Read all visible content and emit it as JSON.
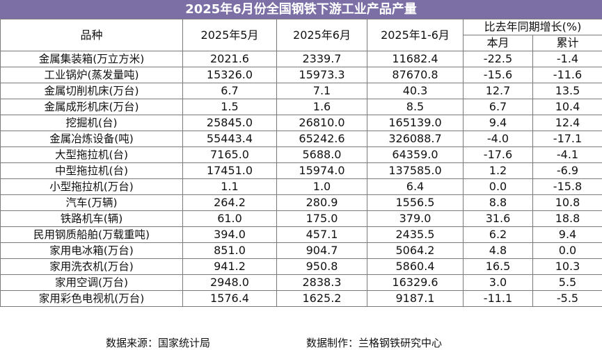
{
  "title": "2025年6月份全国钢铁下游工业产品产量",
  "headers": {
    "variety": "品种",
    "may": "2025年5月",
    "june": "2025年6月",
    "jan_jun": "2025年1-6月",
    "yoy": "比去年同期增长(%)",
    "month": "本月",
    "cumulative": "累计"
  },
  "rows": [
    {
      "name": "金属集装箱(万立方米)",
      "may": "2021.6",
      "june": "2339.7",
      "ytd": "11682.4",
      "m": "-22.5",
      "c": "-1.4"
    },
    {
      "name": "工业锅炉(蒸发量吨)",
      "may": "15326.0",
      "june": "15973.3",
      "ytd": "87670.8",
      "m": "-15.6",
      "c": "-11.6"
    },
    {
      "name": "金属切削机床(万台)",
      "may": "6.7",
      "june": "7.1",
      "ytd": "40.3",
      "m": "12.7",
      "c": "13.5"
    },
    {
      "name": "金属成形机床(万台)",
      "may": "1.5",
      "june": "1.6",
      "ytd": "8.5",
      "m": "6.7",
      "c": "10.4"
    },
    {
      "name": "挖掘机(台)",
      "may": "25845.0",
      "june": "26810.0",
      "ytd": "165139.0",
      "m": "9.4",
      "c": "12.4"
    },
    {
      "name": "金属冶炼设备(吨)",
      "may": "55443.4",
      "june": "65242.6",
      "ytd": "326088.7",
      "m": "-4.0",
      "c": "-17.1"
    },
    {
      "name": "大型拖拉机(台)",
      "may": "7165.0",
      "june": "5688.0",
      "ytd": "64359.0",
      "m": "-17.6",
      "c": "-4.1"
    },
    {
      "name": "中型拖拉机(台)",
      "may": "17451.0",
      "june": "15974.0",
      "ytd": "137585.0",
      "m": "1.2",
      "c": "-6.9"
    },
    {
      "name": "小型拖拉机(万台)",
      "may": "1.1",
      "june": "1.0",
      "ytd": "6.4",
      "m": "0.0",
      "c": "-15.8"
    },
    {
      "name": "汽车(万辆)",
      "may": "264.2",
      "june": "280.9",
      "ytd": "1556.5",
      "m": "8.8",
      "c": "10.8"
    },
    {
      "name": "铁路机车(辆)",
      "may": "61.0",
      "june": "175.0",
      "ytd": "379.0",
      "m": "31.6",
      "c": "18.8"
    },
    {
      "name": "民用钢质船舶(万载重吨)",
      "may": "394.0",
      "june": "457.1",
      "ytd": "2435.5",
      "m": "6.2",
      "c": "9.4"
    },
    {
      "name": "家用电冰箱(万台)",
      "may": "851.0",
      "june": "904.7",
      "ytd": "5064.2",
      "m": "4.8",
      "c": "0.0"
    },
    {
      "name": "家用洗衣机(万台)",
      "may": "941.2",
      "june": "950.8",
      "ytd": "5860.4",
      "m": "16.5",
      "c": "10.3"
    },
    {
      "name": "家用空调(万台)",
      "may": "2948.0",
      "june": "2838.3",
      "ytd": "16329.6",
      "m": "3.0",
      "c": "5.5"
    },
    {
      "name": "家用彩色电视机(万台)",
      "may": "1576.4",
      "june": "1625.2",
      "ytd": "9187.1",
      "m": "-11.1",
      "c": "-5.5"
    }
  ],
  "footer": {
    "source": "数据来源：国家统计局",
    "maker": "数据制作：兰格钢铁研究中心"
  },
  "colors": {
    "title_bg": "#7b6fa6",
    "border": "#7a7a7a"
  }
}
